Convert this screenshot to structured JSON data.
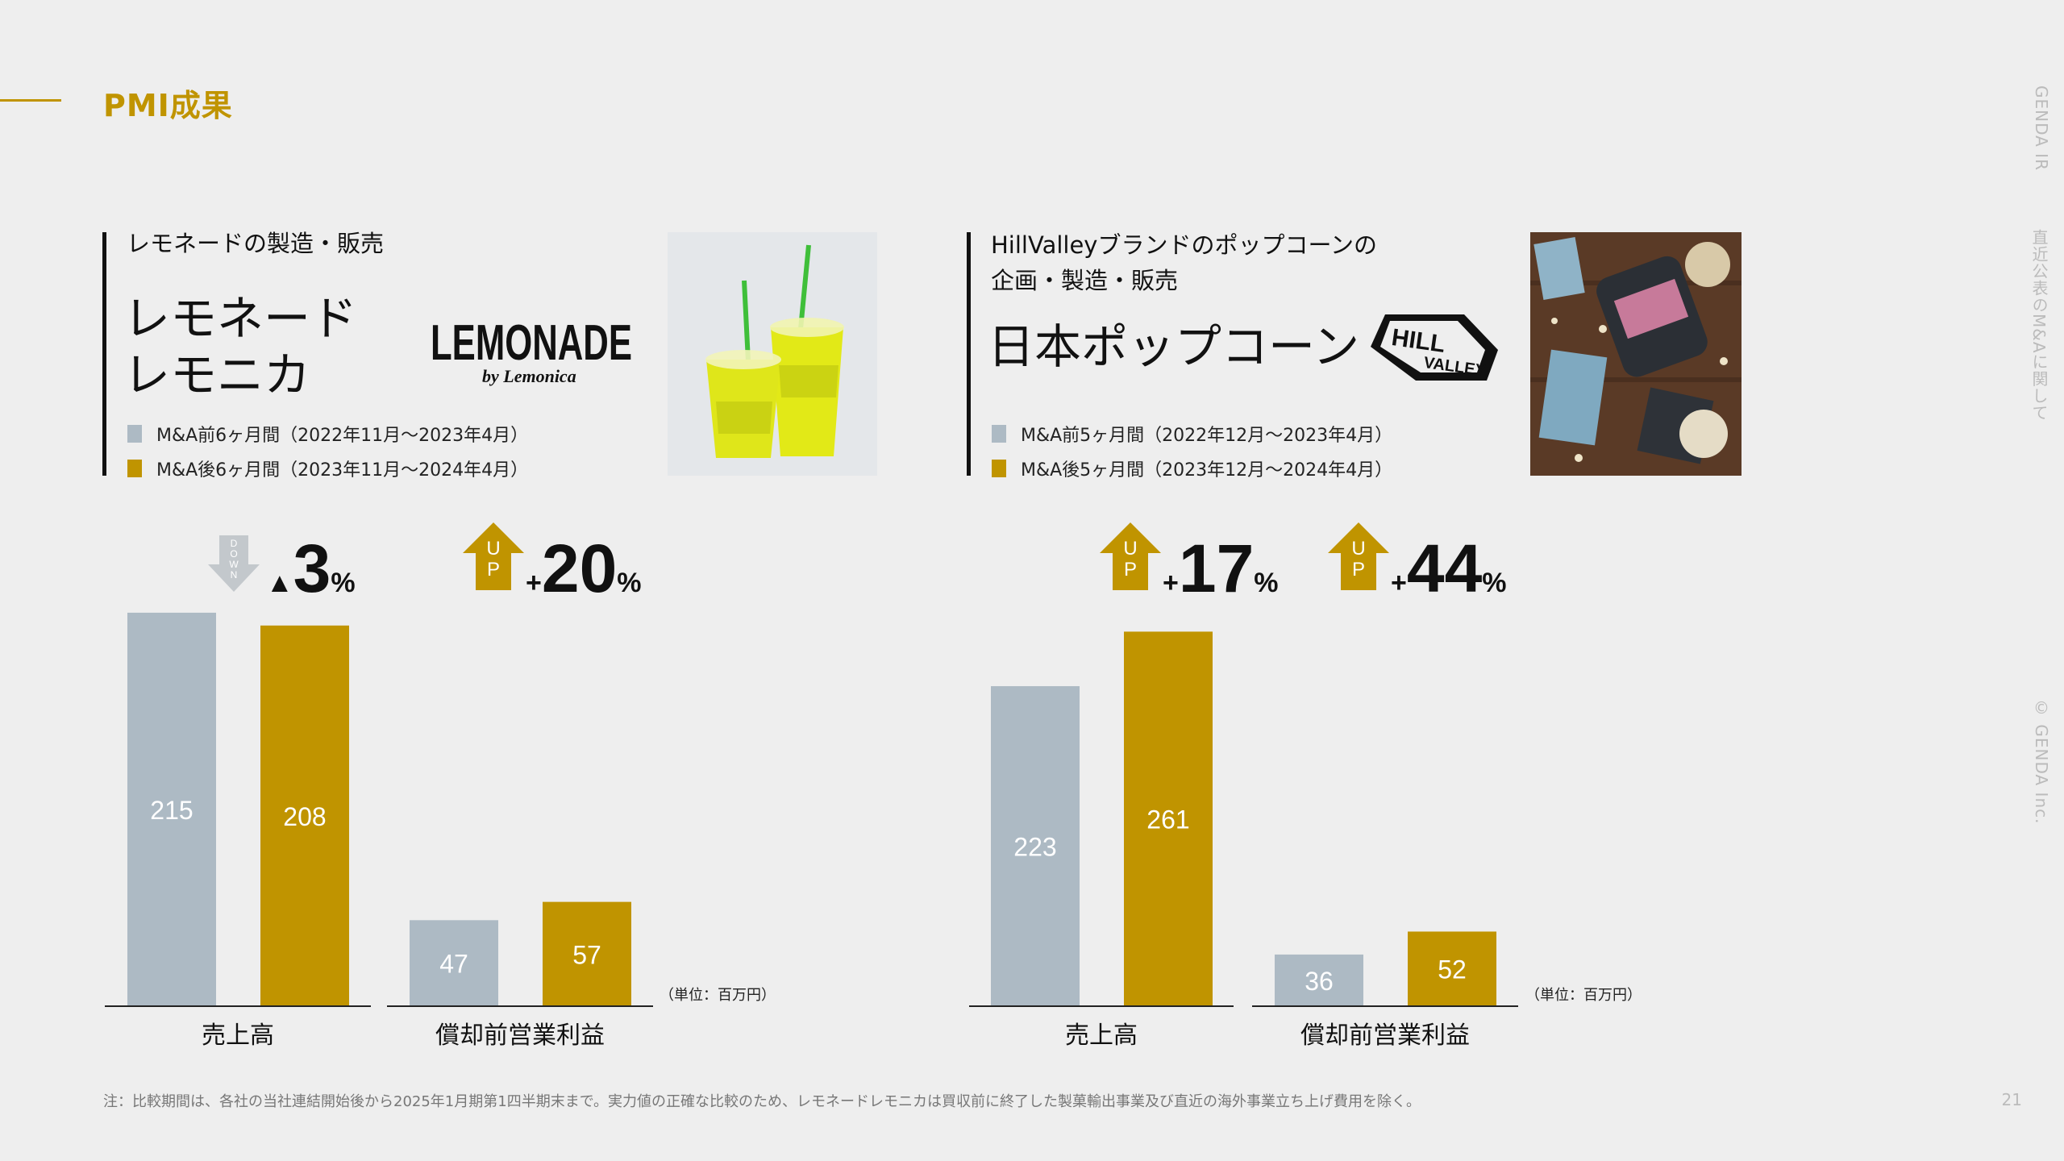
{
  "header": {
    "title": "PMI成果"
  },
  "side": {
    "top": "GENDA IR",
    "middle": "直近公表のM&Aに関して",
    "bottom": "© GENDA Inc."
  },
  "panels": [
    {
      "subtitle_lines": [
        "レモネードの製造・販売"
      ],
      "brand_lines": [
        "レモネード",
        "レモニカ"
      ],
      "logo": {
        "main": "LEMONADE",
        "sub": "by Lemonica"
      },
      "legend": [
        "M&A前6ヶ月間（2022年11月〜2023年4月）",
        "M&A後6ヶ月間（2023年11月〜2024年4月）"
      ]
    },
    {
      "subtitle_lines": [
        "HillValleyブランドのポップコーンの",
        "企画・製造・販売"
      ],
      "brand_lines": [
        "日本ポップコーン"
      ],
      "logo": {
        "main": "HILL",
        "sub": "VALLEY"
      },
      "legend": [
        "M&A前5ヶ月間（2022年12月〜2023年4月）",
        "M&A後5ヶ月間（2023年12月〜2024年4月）"
      ]
    }
  ],
  "colors": {
    "before": "#adbac4",
    "after": "#c09400",
    "accent": "#c09400"
  },
  "chart_data": [
    {
      "type": "bar",
      "company": "レモネードレモニカ",
      "unit": "（単位：百万円）",
      "groups": [
        {
          "category": "売上高",
          "before": 215,
          "after": 208,
          "direction": "down",
          "arrow_text": "DOWN",
          "change_sign": "▲",
          "change_value": "3",
          "change_unit": "%"
        },
        {
          "category": "償却前営業利益",
          "before": 47,
          "after": 57,
          "direction": "up",
          "arrow_text": "UP",
          "change_sign": "+",
          "change_value": "20",
          "change_unit": "%"
        }
      ]
    },
    {
      "type": "bar",
      "company": "日本ポップコーン",
      "unit": "（単位：百万円）",
      "groups": [
        {
          "category": "売上高",
          "before": 223,
          "after": 261,
          "direction": "up",
          "arrow_text": "UP",
          "change_sign": "+",
          "change_value": "17",
          "change_unit": "%"
        },
        {
          "category": "償却前営業利益",
          "before": 36,
          "after": 52,
          "direction": "up",
          "arrow_text": "UP",
          "change_sign": "+",
          "change_value": "44",
          "change_unit": "%"
        }
      ]
    }
  ],
  "footer": {
    "note": "注：比較期間は、各社の当社連結開始後から2025年1月期第1四半期末まで。実力値の正確な比較のため、レモネードレモニカは買収前に終了した製菓輸出事業及び直近の海外事業立ち上げ費用を除く。",
    "page": "21"
  }
}
